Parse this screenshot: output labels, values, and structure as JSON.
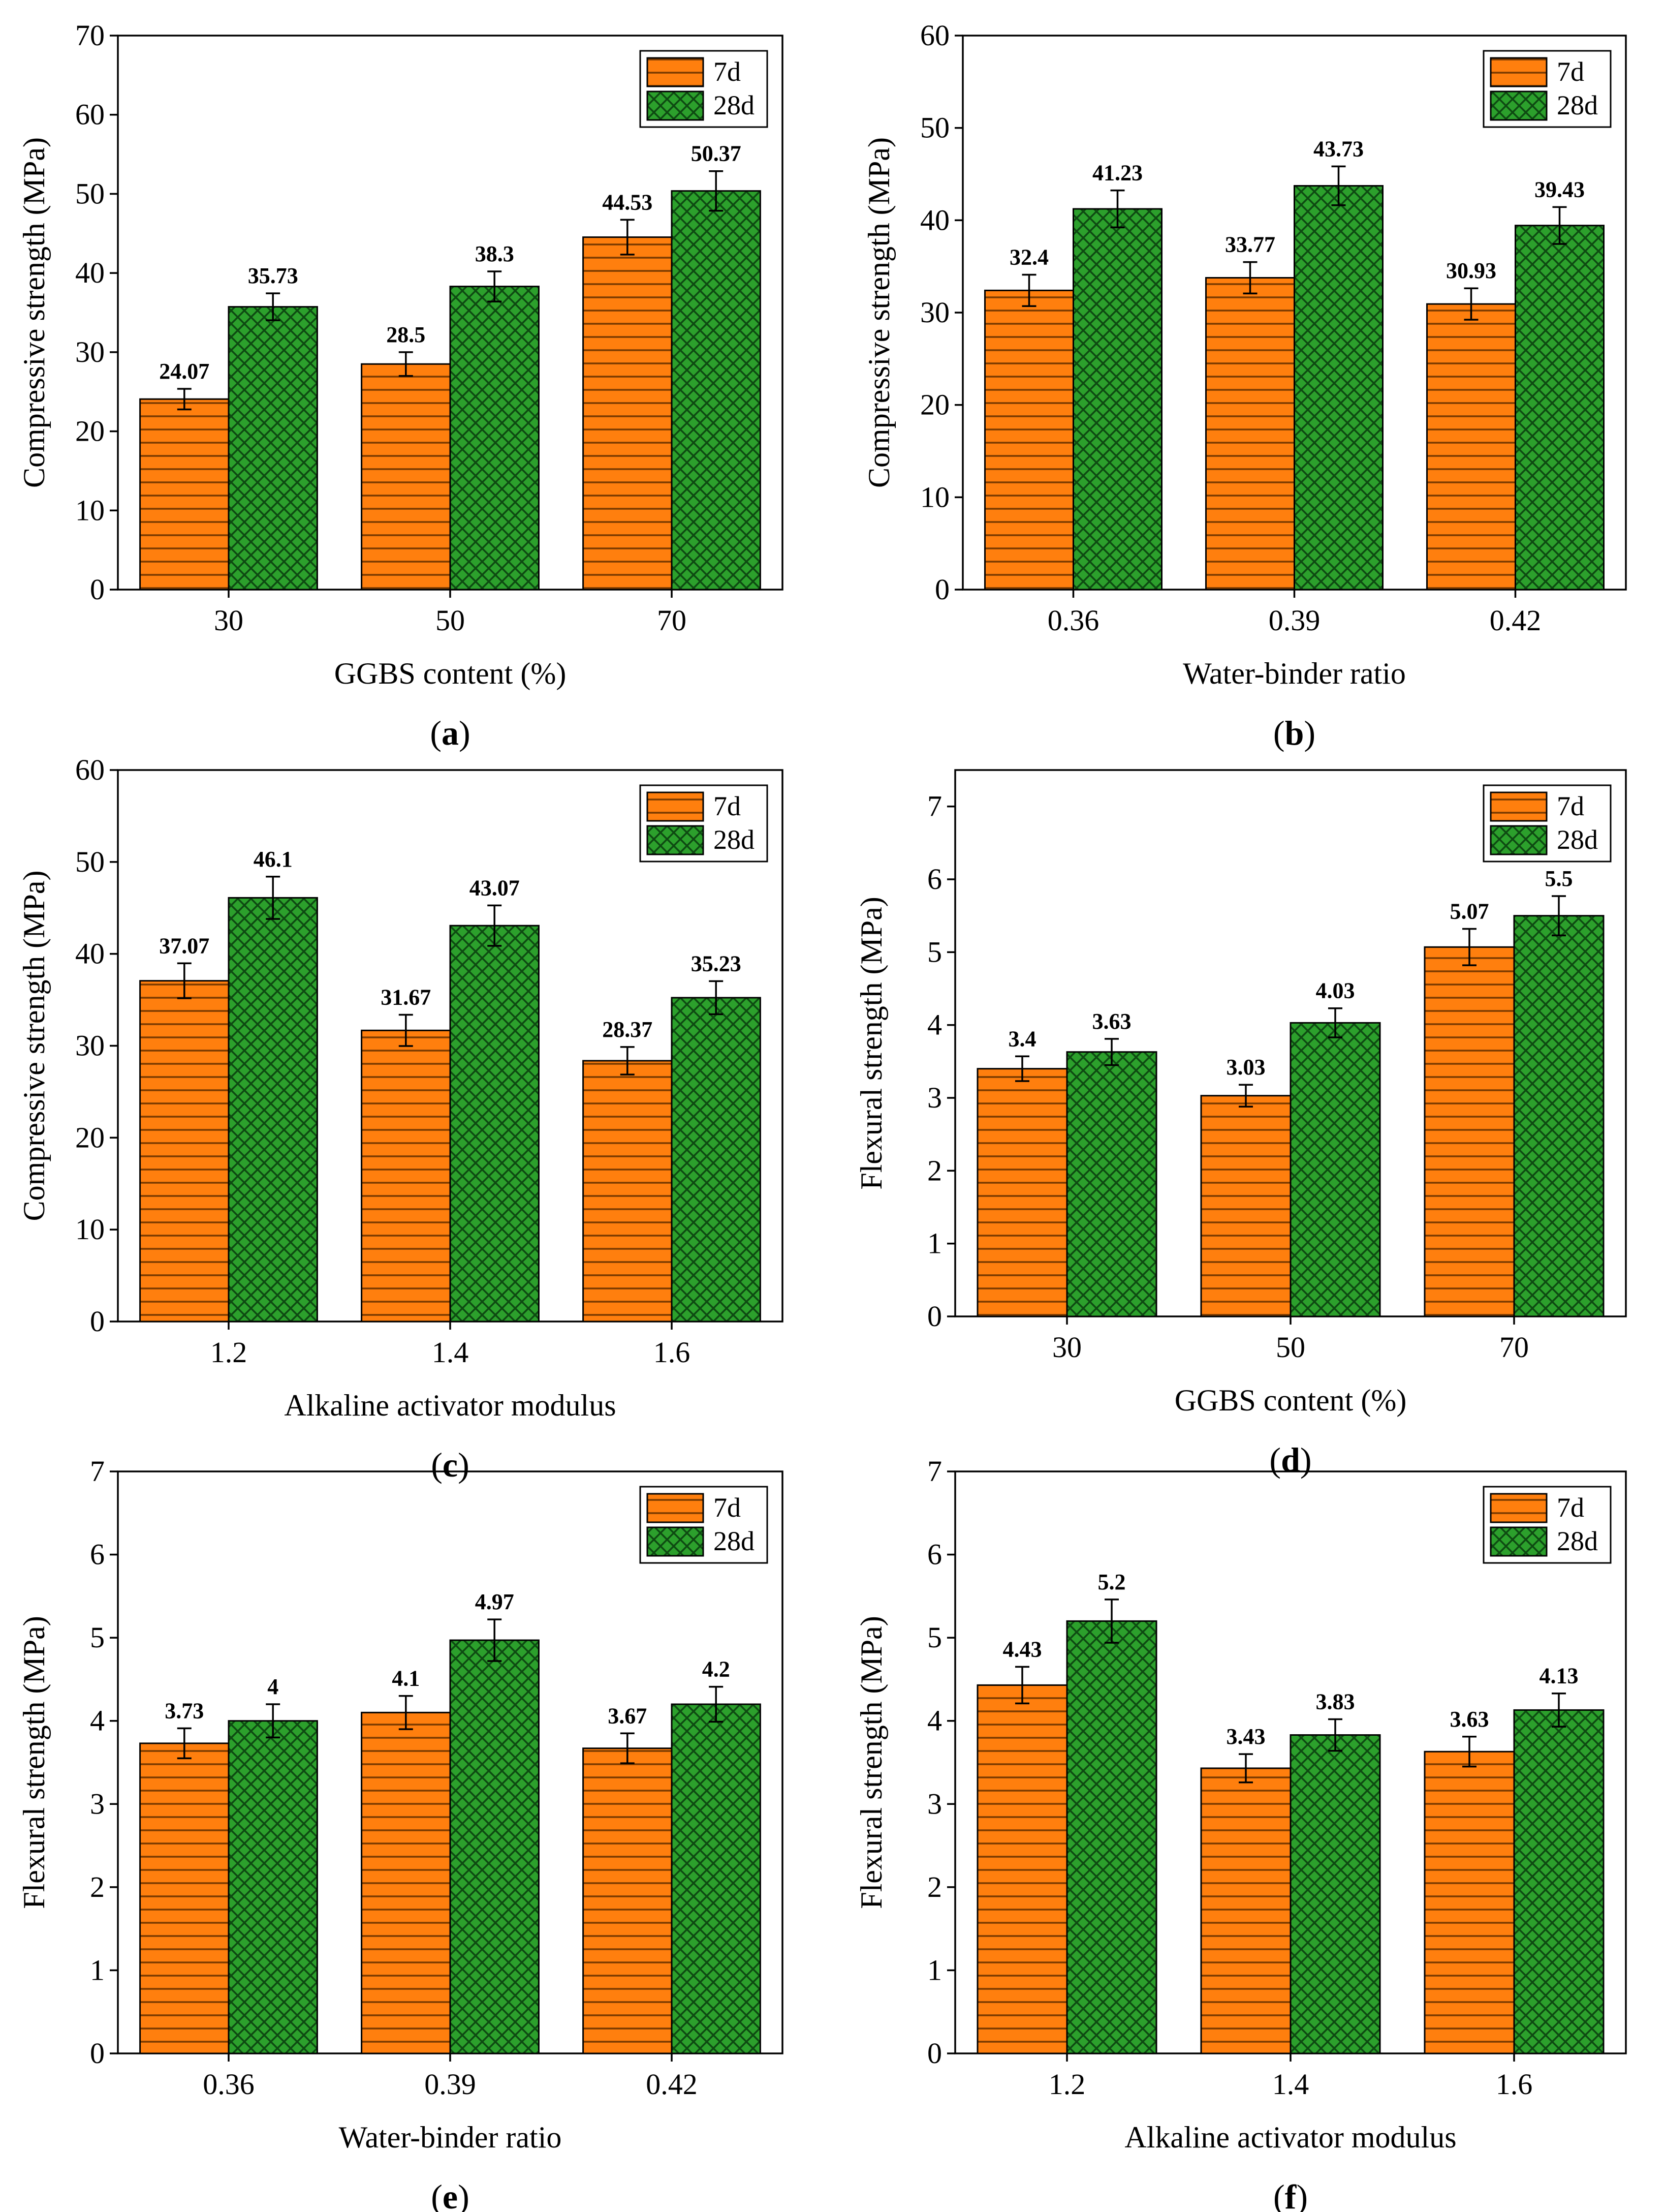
{
  "colors": {
    "series_7d": "#ff7f0e",
    "series_28d": "#2ca02c",
    "hatch_7d": "#7a3a00",
    "hatch_28d": "#0e4a12",
    "axis": "#000000"
  },
  "chart_data": [
    {
      "panel": "a",
      "type": "bar",
      "categories": [
        "30",
        "50",
        "70"
      ],
      "series": [
        {
          "name": "7d",
          "values": [
            24.07,
            28.5,
            44.53
          ],
          "labels": [
            "24.07",
            "28.5",
            "44.53"
          ],
          "errors": [
            1.3,
            1.5,
            2.2
          ]
        },
        {
          "name": "28d",
          "values": [
            35.73,
            38.3,
            50.37
          ],
          "labels": [
            "35.73",
            "38.3",
            "50.37"
          ],
          "errors": [
            1.7,
            1.9,
            2.5
          ]
        }
      ],
      "xlabel": "GGBS content (%)",
      "ylabel": "Compressive strength (MPa)",
      "ylim": [
        0,
        70
      ],
      "yticks": [
        0,
        10,
        20,
        30,
        40,
        50,
        60,
        70
      ],
      "legend": "top-right"
    },
    {
      "panel": "b",
      "type": "bar",
      "categories": [
        "0.36",
        "0.39",
        "0.42"
      ],
      "series": [
        {
          "name": "7d",
          "values": [
            32.4,
            33.77,
            30.93
          ],
          "labels": [
            "32.4",
            "33.77",
            "30.93"
          ],
          "errors": [
            1.7,
            1.7,
            1.7
          ]
        },
        {
          "name": "28d",
          "values": [
            41.23,
            43.73,
            39.43
          ],
          "labels": [
            "41.23",
            "43.73",
            "39.43"
          ],
          "errors": [
            2.0,
            2.1,
            2.0
          ]
        }
      ],
      "xlabel": "Water-binder ratio",
      "ylabel": "Compressive strength (MPa)",
      "ylim": [
        0,
        60
      ],
      "yticks": [
        0,
        10,
        20,
        30,
        40,
        50,
        60
      ],
      "legend": "top-right"
    },
    {
      "panel": "c",
      "type": "bar",
      "categories": [
        "1.2",
        "1.4",
        "1.6"
      ],
      "series": [
        {
          "name": "7d",
          "values": [
            37.07,
            31.67,
            28.37
          ],
          "labels": [
            "37.07",
            "31.67",
            "28.37"
          ],
          "errors": [
            1.9,
            1.7,
            1.5
          ]
        },
        {
          "name": "28d",
          "values": [
            46.1,
            43.07,
            35.23
          ],
          "labels": [
            "46.1",
            "43.07",
            "35.23"
          ],
          "errors": [
            2.3,
            2.2,
            1.8
          ]
        }
      ],
      "xlabel": "Alkaline activator modulus",
      "ylabel": "Compressive strength (MPa)",
      "ylim": [
        0,
        60
      ],
      "yticks": [
        0,
        10,
        20,
        30,
        40,
        50,
        60
      ],
      "legend": "top-right"
    },
    {
      "panel": "d",
      "type": "bar",
      "categories": [
        "30",
        "50",
        "70"
      ],
      "series": [
        {
          "name": "7d",
          "values": [
            3.4,
            3.03,
            5.07
          ],
          "labels": [
            "3.4",
            "3.03",
            "5.07"
          ],
          "errors": [
            0.17,
            0.15,
            0.25
          ]
        },
        {
          "name": "28d",
          "values": [
            3.63,
            4.03,
            5.5
          ],
          "labels": [
            "3.63",
            "4.03",
            "5.5"
          ],
          "errors": [
            0.18,
            0.2,
            0.27
          ]
        }
      ],
      "xlabel": "GGBS content (%)",
      "ylabel": "Flexural strength (MPa)",
      "ylim": [
        0,
        7.5
      ],
      "yticks": [
        0,
        1,
        2,
        3,
        4,
        5,
        6,
        7
      ],
      "legend": "top-right"
    },
    {
      "panel": "e",
      "type": "bar",
      "categories": [
        "0.36",
        "0.39",
        "0.42"
      ],
      "series": [
        {
          "name": "7d",
          "values": [
            3.73,
            4.1,
            3.67
          ],
          "labels": [
            "3.73",
            "4.1",
            "3.67"
          ],
          "errors": [
            0.18,
            0.2,
            0.18
          ]
        },
        {
          "name": "28d",
          "values": [
            4.0,
            4.97,
            4.2
          ],
          "labels": [
            "4",
            "4.97",
            "4.2"
          ],
          "errors": [
            0.2,
            0.25,
            0.21
          ]
        }
      ],
      "xlabel": "Water-binder ratio",
      "ylabel": "Flexural strength (MPa)",
      "ylim": [
        0,
        7
      ],
      "yticks": [
        0,
        1,
        2,
        3,
        4,
        5,
        6,
        7
      ],
      "legend": "top-right"
    },
    {
      "panel": "f",
      "type": "bar",
      "categories": [
        "1.2",
        "1.4",
        "1.6"
      ],
      "series": [
        {
          "name": "7d",
          "values": [
            4.43,
            3.43,
            3.63
          ],
          "labels": [
            "4.43",
            "3.43",
            "3.63"
          ],
          "errors": [
            0.22,
            0.17,
            0.18
          ]
        },
        {
          "name": "28d",
          "values": [
            5.2,
            3.83,
            4.13
          ],
          "labels": [
            "5.2",
            "3.83",
            "4.13"
          ],
          "errors": [
            0.26,
            0.19,
            0.2
          ]
        }
      ],
      "xlabel": "Alkaline activator modulus",
      "ylabel": "Flexural strength (MPa)",
      "ylim": [
        0,
        7
      ],
      "yticks": [
        0,
        1,
        2,
        3,
        4,
        5,
        6,
        7
      ],
      "legend": "top-right"
    }
  ],
  "panel_labels": [
    "(a)",
    "(b)",
    "(c)",
    "(d)",
    "(e)",
    "(f)"
  ]
}
